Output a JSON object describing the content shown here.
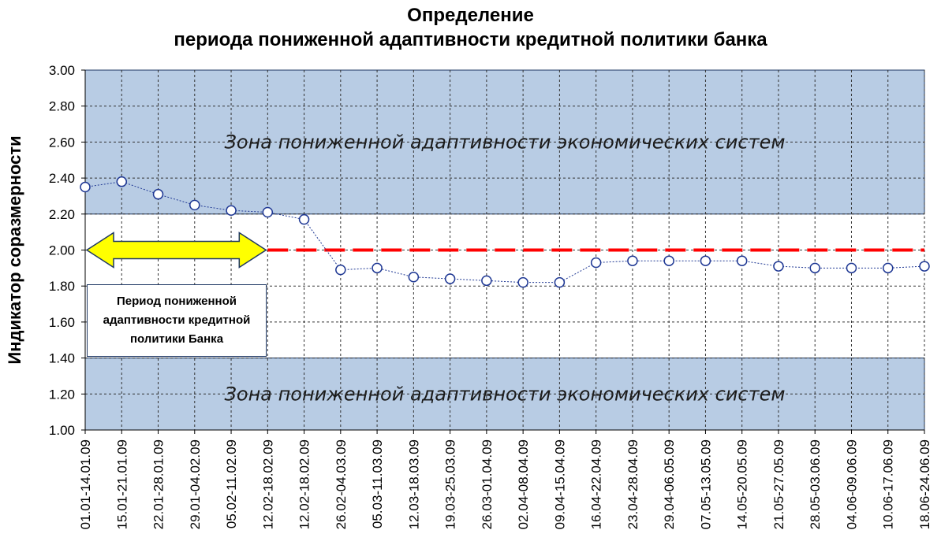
{
  "chart_data": {
    "type": "line",
    "title": [
      "Определение",
      "периода пониженной адаптивности кредитной политики банка"
    ],
    "ylabel": "Индикатор соразмерности",
    "xlabel": "",
    "ylim": [
      1.0,
      3.0
    ],
    "yticks": [
      "1.00",
      "1.20",
      "1.40",
      "1.60",
      "1.80",
      "2.00",
      "2.20",
      "2.40",
      "2.60",
      "2.80",
      "3.00"
    ],
    "categories": [
      "01.01-14.01.09",
      "15.01-21.01.09",
      "22.01-28.01.09",
      "29.01-04.02.09",
      "05.02-11.02.09",
      "12.02-18.02.09",
      "12.02-18.02.09",
      "26.02-04.03.09",
      "05.03-11.03.09",
      "12.03-18.03.09",
      "19.03-25.03.09",
      "26.03-01.04.09",
      "02.04-08.04.09",
      "09.04-15.04.09",
      "16.04-22.04.09",
      "23.04-28.04.09",
      "29.04-06.05.09",
      "07.05-13.05.09",
      "14.05-20.05.09",
      "21.05-27.05.09",
      "28.05-03.06.09",
      "04.06-09.06.09",
      "10.06-17.06.09",
      "18.06-24.06.09"
    ],
    "series": [
      {
        "values": [
          2.35,
          2.38,
          2.31,
          2.25,
          2.22,
          2.21,
          2.17,
          1.89,
          1.9,
          1.85,
          1.84,
          1.83,
          1.82,
          1.82,
          1.93,
          1.94,
          1.94,
          1.94,
          1.94,
          1.91,
          1.9,
          1.9,
          1.9,
          1.91
        ],
        "color": "#1f3894"
      }
    ],
    "reference_line": {
      "value": 2.0,
      "color": "#ff0000",
      "style": "dashed"
    },
    "zones": [
      {
        "from": 2.2,
        "to": 3.0,
        "label": "Зона пониженной адаптивности экономических систем",
        "color": "#b8cce4"
      },
      {
        "from": 1.0,
        "to": 1.4,
        "label": "Зона пониженной адаптивности экономических систем",
        "color": "#b8cce4"
      }
    ],
    "period_annotation": {
      "label": "Период пониженной адаптивности  кредитной политики Банка",
      "from_index": 0,
      "to_index": 5,
      "arrow_color": "#ffff00"
    },
    "grid": true
  }
}
